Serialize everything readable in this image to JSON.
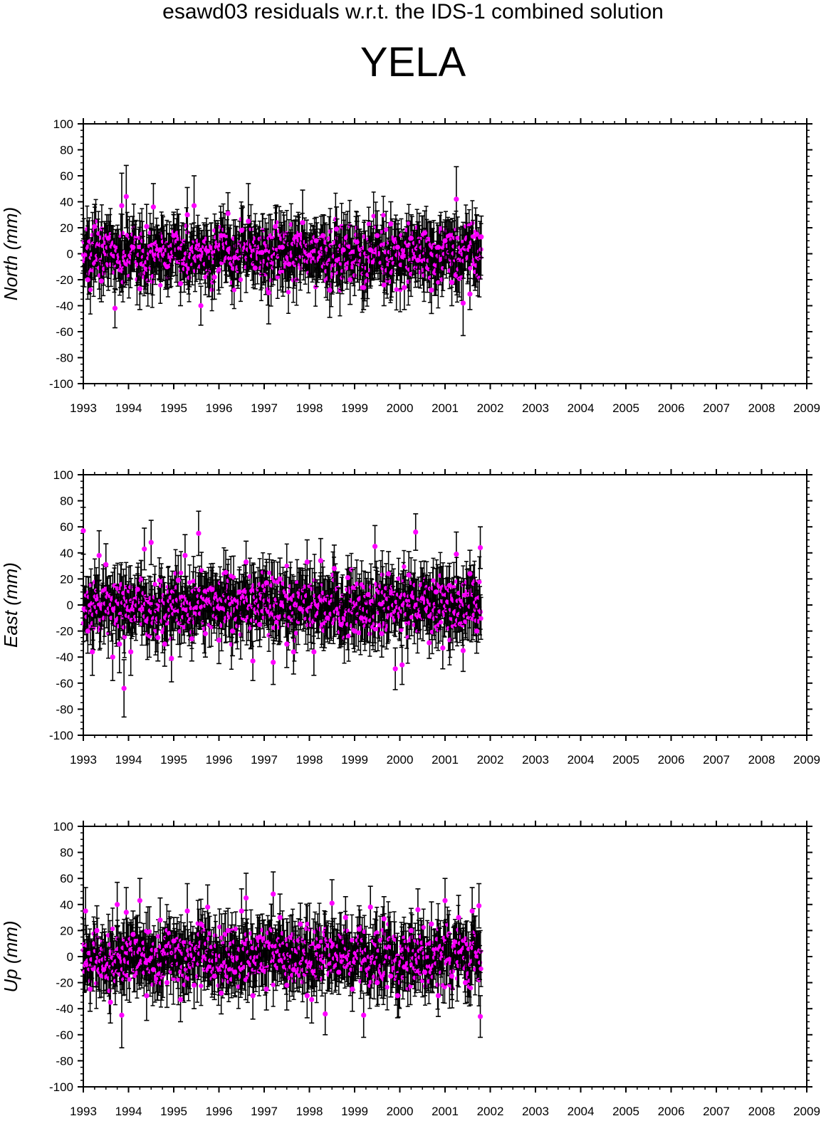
{
  "header": {
    "title": "esawd03 residuals w.r.t. the IDS-1 combined solution",
    "station": "YELA"
  },
  "style": {
    "point_color": "#ff00ff",
    "errorbar_color": "#000000",
    "axis_color": "#000000"
  },
  "chart_data": [
    {
      "type": "scatter",
      "ylabel": "North (mm)",
      "xlim": [
        1993,
        2009
      ],
      "ylim": [
        -100,
        100
      ],
      "xticks": [
        "1993",
        "1994",
        "1995",
        "1996",
        "1997",
        "1998",
        "1999",
        "2000",
        "2001",
        "2002",
        "2003",
        "2004",
        "2005",
        "2006",
        "2007",
        "2008",
        "2009"
      ],
      "yticks": [
        "100",
        "80",
        "60",
        "40",
        "20",
        "0",
        "-20",
        "-40",
        "-60",
        "-80",
        "-100"
      ],
      "grid": false,
      "data_range": [
        1993.0,
        2001.8
      ],
      "series": [
        {
          "x": [
            1993.1,
            1993.25,
            1993.4,
            1993.55,
            1993.7,
            1993.85,
            1993.95,
            1994.1,
            1994.25,
            1994.4,
            1994.55,
            1994.7,
            1994.85,
            1995.0,
            1995.15,
            1995.3,
            1995.45,
            1995.6,
            1995.75,
            1995.9,
            1996.05,
            1996.2,
            1996.35,
            1996.5,
            1996.65,
            1996.8,
            1996.95,
            1997.1,
            1997.25,
            1997.4,
            1997.55,
            1997.7,
            1997.85,
            1998.0,
            1998.15,
            1998.3,
            1998.45,
            1998.6,
            1998.75,
            1998.9,
            1999.05,
            1999.2,
            1999.35,
            1999.5,
            1999.65,
            1999.8,
            1999.95,
            2000.1,
            2000.25,
            2000.4,
            2000.55,
            2000.7,
            2000.85,
            2001.0,
            2001.15,
            2001.25,
            2001.4,
            2001.55,
            2001.7,
            2001.8
          ],
          "y": [
            -20,
            21,
            -21,
            12,
            -42,
            37,
            44,
            5,
            -27,
            21,
            36,
            3,
            -10,
            14,
            -23,
            30,
            37,
            -40,
            2,
            -18,
            14,
            31,
            -3,
            18,
            25,
            -11,
            1,
            -30,
            21,
            5,
            -8,
            13,
            24,
            -1,
            10,
            14,
            -28,
            19,
            3,
            -20,
            9,
            -26,
            3,
            14,
            -24,
            23,
            5,
            -26,
            12,
            -5,
            16,
            -28,
            5,
            10,
            -22,
            42,
            -38,
            -31,
            15,
            13
          ],
          "err": [
            15,
            17,
            16,
            18,
            15,
            25,
            24,
            17,
            16,
            17,
            18,
            16,
            17,
            18,
            17,
            21,
            23,
            15,
            16,
            17,
            18,
            16,
            17,
            17,
            29,
            16,
            17,
            24,
            16,
            17,
            18,
            16,
            25,
            17,
            18,
            16,
            21,
            17,
            18,
            19,
            16,
            17,
            18,
            19,
            16,
            17,
            18,
            17,
            18,
            16,
            17,
            18,
            17,
            16,
            18,
            25,
            25,
            12,
            15,
            16
          ]
        }
      ]
    },
    {
      "type": "scatter",
      "ylabel": "East (mm)",
      "xlim": [
        1993,
        2009
      ],
      "ylim": [
        -100,
        100
      ],
      "xticks": [
        "1993",
        "1994",
        "1995",
        "1996",
        "1997",
        "1998",
        "1999",
        "2000",
        "2001",
        "2002",
        "2003",
        "2004",
        "2005",
        "2006",
        "2007",
        "2008",
        "2009"
      ],
      "yticks": [
        "100",
        "80",
        "60",
        "40",
        "20",
        "0",
        "-20",
        "-40",
        "-60",
        "-80",
        "-100"
      ],
      "grid": false,
      "data_range": [
        1993.0,
        2001.8
      ],
      "series": [
        {
          "x": [
            1993.0,
            1993.1,
            1993.2,
            1993.35,
            1993.5,
            1993.65,
            1993.8,
            1993.9,
            1994.05,
            1994.2,
            1994.35,
            1994.5,
            1994.65,
            1994.8,
            1994.95,
            1995.1,
            1995.25,
            1995.4,
            1995.55,
            1995.7,
            1995.85,
            1996.0,
            1996.15,
            1996.3,
            1996.45,
            1996.6,
            1996.75,
            1996.9,
            1997.05,
            1997.2,
            1997.35,
            1997.5,
            1997.65,
            1997.8,
            1997.95,
            1998.1,
            1998.25,
            1998.4,
            1998.55,
            1998.7,
            1998.85,
            1999.0,
            1999.15,
            1999.3,
            1999.45,
            1999.6,
            1999.75,
            1999.9,
            2000.05,
            2000.2,
            2000.35,
            2000.5,
            2000.65,
            2000.8,
            2000.95,
            2001.1,
            2001.25,
            2001.4,
            2001.55,
            2001.7,
            2001.78
          ],
          "y": [
            57,
            -20,
            -36,
            38,
            31,
            -40,
            -30,
            -64,
            -36,
            12,
            43,
            48,
            -25,
            -30,
            -41,
            19,
            38,
            -26,
            55,
            -22,
            12,
            -27,
            25,
            -20,
            10,
            33,
            -43,
            -15,
            17,
            -44,
            20,
            -30,
            -36,
            -3,
            33,
            -36,
            34,
            -10,
            28,
            -15,
            21,
            -20,
            -10,
            8,
            45,
            -22,
            24,
            -49,
            -46,
            23,
            56,
            5,
            -29,
            10,
            -33,
            15,
            39,
            -35,
            24,
            -20,
            44
          ],
          "err": [
            18,
            17,
            18,
            19,
            16,
            18,
            22,
            22,
            18,
            17,
            16,
            17,
            18,
            17,
            18,
            19,
            16,
            17,
            17,
            18,
            17,
            18,
            17,
            19,
            17,
            16,
            15,
            17,
            18,
            17,
            16,
            18,
            17,
            16,
            17,
            18,
            17,
            16,
            18,
            17,
            17,
            16,
            18,
            17,
            16,
            18,
            17,
            16,
            15,
            18,
            14,
            17,
            12,
            18,
            16,
            17,
            17,
            16,
            18,
            17,
            16
          ]
        }
      ]
    },
    {
      "type": "scatter",
      "ylabel": "Up (mm)",
      "xlim": [
        1993,
        2009
      ],
      "ylim": [
        -100,
        100
      ],
      "xticks": [
        "1993",
        "1994",
        "1995",
        "1996",
        "1997",
        "1998",
        "1999",
        "2000",
        "2001",
        "2002",
        "2003",
        "2004",
        "2005",
        "2006",
        "2007",
        "2008",
        "2009"
      ],
      "yticks": [
        "100",
        "80",
        "60",
        "40",
        "20",
        "0",
        "-20",
        "-40",
        "-60",
        "-80",
        "-100"
      ],
      "grid": false,
      "data_range": [
        1993.0,
        2001.8
      ],
      "series": [
        {
          "x": [
            1993.05,
            1993.15,
            1993.3,
            1993.45,
            1993.6,
            1993.75,
            1993.85,
            1993.95,
            1994.1,
            1994.25,
            1994.4,
            1994.55,
            1994.7,
            1994.85,
            1995.0,
            1995.15,
            1995.3,
            1995.45,
            1995.6,
            1995.75,
            1995.9,
            1996.05,
            1996.2,
            1996.35,
            1996.5,
            1996.6,
            1996.75,
            1996.9,
            1997.05,
            1997.2,
            1997.35,
            1997.5,
            1997.65,
            1997.8,
            1997.95,
            1998.05,
            1998.2,
            1998.35,
            1998.5,
            1998.65,
            1998.8,
            1998.95,
            1999.1,
            1999.2,
            1999.35,
            1999.5,
            1999.65,
            1999.8,
            1999.95,
            2000.1,
            2000.25,
            2000.4,
            2000.55,
            2000.7,
            2000.85,
            2001.0,
            2001.15,
            2001.3,
            2001.45,
            2001.6,
            2001.75,
            2001.78
          ],
          "y": [
            35,
            -25,
            20,
            -10,
            -35,
            40,
            -45,
            34,
            17,
            43,
            -30,
            -10,
            28,
            -20,
            12,
            -33,
            35,
            -22,
            25,
            38,
            -15,
            -28,
            20,
            -12,
            35,
            45,
            -30,
            15,
            -25,
            48,
            30,
            -22,
            -10,
            25,
            -30,
            -33,
            8,
            -44,
            41,
            -12,
            30,
            -25,
            21,
            -45,
            38,
            -20,
            29,
            -15,
            -30,
            -8,
            20,
            36,
            -12,
            25,
            -30,
            43,
            -15,
            30,
            -20,
            35,
            39,
            -46
          ],
          "err": [
            18,
            17,
            19,
            18,
            16,
            17,
            25,
            19,
            18,
            17,
            19,
            18,
            17,
            19,
            18,
            17,
            21,
            18,
            19,
            17,
            18,
            16,
            17,
            18,
            17,
            19,
            18,
            17,
            16,
            17,
            18,
            19,
            17,
            16,
            17,
            18,
            17,
            16,
            18,
            17,
            16,
            17,
            18,
            17,
            16,
            18,
            17,
            16,
            17,
            18,
            17,
            16,
            18,
            17,
            16,
            17,
            18,
            17,
            16,
            18,
            17,
            16
          ]
        }
      ]
    }
  ]
}
